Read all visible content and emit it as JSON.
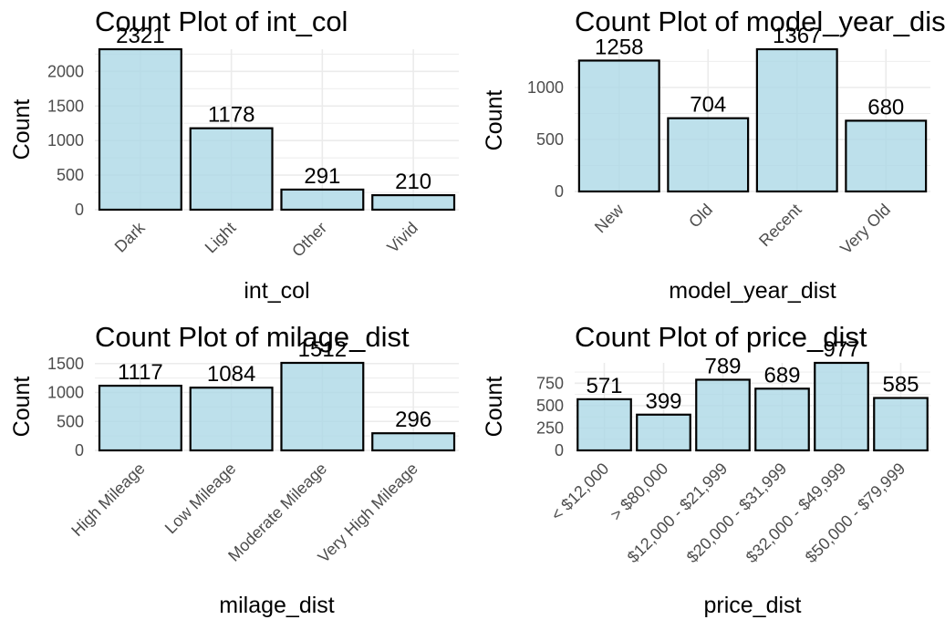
{
  "chart_data": [
    {
      "type": "bar",
      "title": "Count Plot of int_col",
      "xlabel": "int_col",
      "ylabel": "Count",
      "categories": [
        "Dark",
        "Light",
        "Other",
        "Vivid"
      ],
      "values": [
        2321,
        1178,
        291,
        210
      ],
      "data_labels": [
        "2321",
        "1178",
        "291",
        "210"
      ],
      "ylim": [
        0,
        2321
      ],
      "yticks": [
        0,
        500,
        1000,
        1500,
        2000
      ],
      "grid": true,
      "legend": "none"
    },
    {
      "type": "bar",
      "title": "Count Plot of model_year_dist",
      "xlabel": "model_year_dist",
      "ylabel": "Count",
      "categories": [
        "New",
        "Old",
        "Recent",
        "Very Old"
      ],
      "values": [
        1258,
        704,
        1367,
        680
      ],
      "data_labels": [
        "1258",
        "704",
        "1367",
        "680"
      ],
      "ylim": [
        0,
        1367
      ],
      "yticks": [
        0,
        500,
        1000
      ],
      "grid": true,
      "legend": "none"
    },
    {
      "type": "bar",
      "title": "Count Plot of milage_dist",
      "xlabel": "milage_dist",
      "ylabel": "Count",
      "categories": [
        "High Mileage",
        "Low Mileage",
        "Moderate Mileage",
        "Very High Mileage"
      ],
      "values": [
        1117,
        1084,
        1512,
        296
      ],
      "data_labels": [
        "1117",
        "1084",
        "1512",
        "296"
      ],
      "ylim": [
        0,
        1512
      ],
      "yticks": [
        0,
        500,
        1000,
        1500
      ],
      "grid": true,
      "legend": "none"
    },
    {
      "type": "bar",
      "title": "Count Plot of price_dist",
      "xlabel": "price_dist",
      "ylabel": "Count",
      "categories": [
        "< $12,000",
        "> $80,000",
        "$12,000 - $21,999",
        "$20,000 - $31,999",
        "$32,000 - $49,999",
        "$50,000 - $79,999"
      ],
      "values": [
        571,
        399,
        789,
        689,
        977,
        585
      ],
      "data_labels": [
        "571",
        "399",
        "789",
        "689",
        "977",
        "585"
      ],
      "ylim": [
        0,
        977
      ],
      "yticks": [
        0,
        250,
        500,
        750,
        1000
      ],
      "grid": true,
      "legend": "none"
    }
  ],
  "colors": {
    "bar_fill": "#add8e6",
    "bar_stroke": "#000000",
    "grid": "#ebebeb",
    "tick_text": "#4d4d4d",
    "text": "#000000"
  }
}
